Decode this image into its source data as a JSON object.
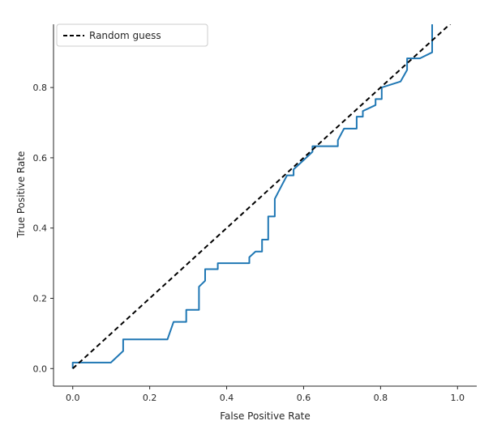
{
  "chart_data": {
    "type": "line",
    "xlabel": "False Positive Rate",
    "ylabel": "True Positive Rate",
    "xlim": [
      -0.05,
      1.05
    ],
    "ylim": [
      -0.05,
      0.98
    ],
    "xticks": [
      "0.0",
      "0.2",
      "0.4",
      "0.6",
      "0.8",
      "1.0"
    ],
    "yticks": [
      "0.0",
      "0.2",
      "0.4",
      "0.6",
      "0.8"
    ],
    "legend_position": "top-left",
    "grid": false,
    "series": [
      {
        "color": "#1f77b4",
        "style": "solid",
        "x": [
          0.0,
          0.0,
          0.099,
          0.131,
          0.131,
          0.246,
          0.262,
          0.295,
          0.295,
          0.328,
          0.328,
          0.344,
          0.344,
          0.377,
          0.377,
          0.459,
          0.459,
          0.475,
          0.492,
          0.492,
          0.508,
          0.508,
          0.525,
          0.525,
          0.541,
          0.557,
          0.574,
          0.574,
          0.59,
          0.623,
          0.623,
          0.689,
          0.689,
          0.705,
          0.738,
          0.738,
          0.754,
          0.754,
          0.787,
          0.787,
          0.803,
          0.803,
          0.852,
          0.869,
          0.869,
          0.902,
          0.934,
          0.934
        ],
        "y": [
          0.0,
          0.017,
          0.017,
          0.05,
          0.083,
          0.083,
          0.133,
          0.133,
          0.167,
          0.167,
          0.233,
          0.25,
          0.283,
          0.283,
          0.3,
          0.3,
          0.317,
          0.333,
          0.333,
          0.367,
          0.367,
          0.433,
          0.433,
          0.483,
          0.517,
          0.55,
          0.55,
          0.567,
          0.583,
          0.617,
          0.633,
          0.633,
          0.65,
          0.683,
          0.683,
          0.717,
          0.717,
          0.733,
          0.75,
          0.767,
          0.767,
          0.8,
          0.817,
          0.85,
          0.883,
          0.883,
          0.9,
          0.98
        ]
      },
      {
        "name": "Random guess",
        "color": "#000000",
        "style": "dashed",
        "x": [
          0.0,
          1.0
        ],
        "y": [
          0.0,
          1.0
        ]
      }
    ]
  }
}
